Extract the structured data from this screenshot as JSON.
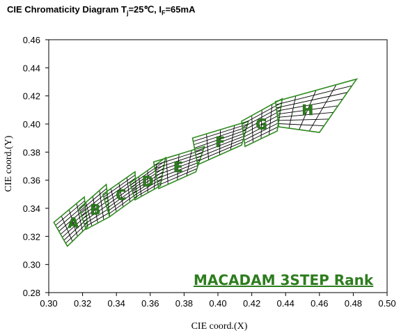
{
  "title": {
    "prefix": "CIE Chromaticity Diagram T",
    "sub1": "j",
    "mid": "=25℃, I",
    "sub2": "F",
    "suffix": "=65mA"
  },
  "rank_label": "MACADAM 3STEP Rank",
  "colors": {
    "bin_stroke": "#2e8b1f",
    "grid_stroke": "#000000",
    "letter_fill": "#2e7d1f"
  },
  "chart_data": {
    "type": "scatter",
    "xlabel": "CIE coord.(X)",
    "ylabel": "CIE coord.(Y)",
    "xlim": [
      0.3,
      0.5
    ],
    "ylim": [
      0.28,
      0.46
    ],
    "xticks": [
      "0.30",
      "0.32",
      "0.34",
      "0.36",
      "0.38",
      "0.40",
      "0.42",
      "0.44",
      "0.46",
      "0.48",
      "0.50"
    ],
    "yticks": [
      "0.28",
      "0.30",
      "0.32",
      "0.34",
      "0.36",
      "0.38",
      "0.40",
      "0.42",
      "0.44",
      "0.46"
    ],
    "grid": false,
    "bins": [
      {
        "name": "A",
        "corners": [
          [
            0.303,
            0.33
          ],
          [
            0.311,
            0.313
          ],
          [
            0.323,
            0.327
          ],
          [
            0.321,
            0.348
          ]
        ]
      },
      {
        "name": "B",
        "corners": [
          [
            0.318,
            0.34
          ],
          [
            0.322,
            0.325
          ],
          [
            0.336,
            0.334
          ],
          [
            0.334,
            0.357
          ]
        ]
      },
      {
        "name": "C",
        "corners": [
          [
            0.332,
            0.35
          ],
          [
            0.336,
            0.334
          ],
          [
            0.352,
            0.348
          ],
          [
            0.351,
            0.366
          ]
        ]
      },
      {
        "name": "D",
        "corners": [
          [
            0.348,
            0.358
          ],
          [
            0.351,
            0.346
          ],
          [
            0.366,
            0.356
          ],
          [
            0.369,
            0.376
          ]
        ]
      },
      {
        "name": "E",
        "corners": [
          [
            0.362,
            0.373
          ],
          [
            0.365,
            0.354
          ],
          [
            0.387,
            0.366
          ],
          [
            0.392,
            0.384
          ]
        ]
      },
      {
        "name": "F",
        "corners": [
          [
            0.385,
            0.39
          ],
          [
            0.388,
            0.371
          ],
          [
            0.414,
            0.385
          ],
          [
            0.418,
            0.402
          ]
        ]
      },
      {
        "name": "G",
        "corners": [
          [
            0.414,
            0.402
          ],
          [
            0.416,
            0.384
          ],
          [
            0.435,
            0.395
          ],
          [
            0.438,
            0.418
          ]
        ]
      },
      {
        "name": "H",
        "corners": [
          [
            0.434,
            0.416
          ],
          [
            0.436,
            0.398
          ],
          [
            0.46,
            0.394
          ],
          [
            0.482,
            0.432
          ]
        ]
      }
    ]
  }
}
